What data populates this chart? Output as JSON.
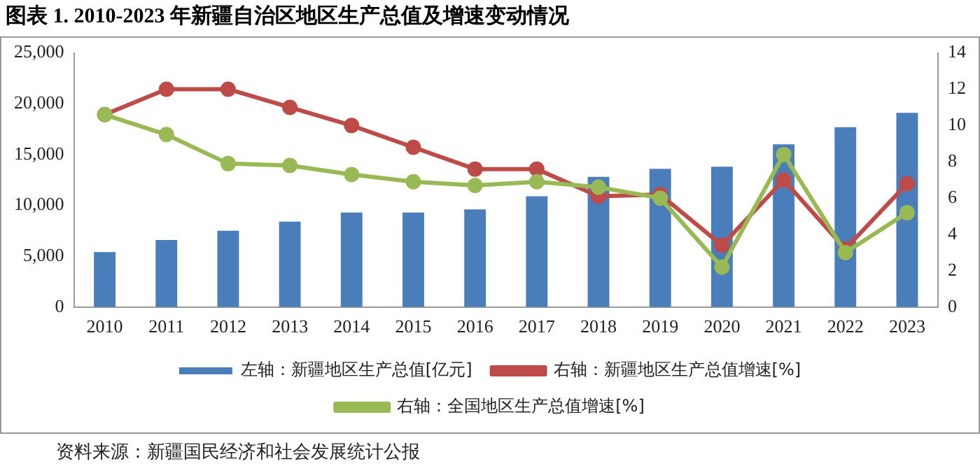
{
  "chart_data": {
    "type": "bar",
    "title": "图表 1. 2010-2023 年新疆自治区地区生产总值及增速变动情况",
    "categories": [
      "2010",
      "2011",
      "2012",
      "2013",
      "2014",
      "2015",
      "2016",
      "2017",
      "2018",
      "2019",
      "2020",
      "2021",
      "2022",
      "2023"
    ],
    "series": [
      {
        "name": "左轴：新疆地区生产总值[亿元]",
        "color": "#4a7ebb",
        "values": [
          5400,
          6600,
          7500,
          8400,
          9300,
          9300,
          9600,
          10900,
          12800,
          13600,
          13800,
          16000,
          17700,
          19100
        ]
      },
      {
        "name": "右轴：新疆地区生产总值增速[%]",
        "type": "line",
        "axis": "y2",
        "color": "#be4b48",
        "values": [
          10.6,
          12.0,
          12.0,
          11.0,
          10.0,
          8.8,
          7.6,
          7.6,
          6.1,
          6.2,
          3.4,
          7.0,
          3.2,
          6.8
        ]
      },
      {
        "name": "右轴：全国地区生产总值增速[%]",
        "type": "line",
        "axis": "y2",
        "color": "#98b954",
        "values": [
          10.6,
          9.5,
          7.9,
          7.8,
          7.3,
          6.9,
          6.7,
          6.9,
          6.6,
          6.0,
          2.2,
          8.4,
          3.0,
          5.2
        ]
      }
    ],
    "ylim": [
      0,
      25000
    ],
    "yticks": [
      {
        "value": 0,
        "label": "0"
      },
      {
        "value": 5000,
        "label": "5,000"
      },
      {
        "value": 10000,
        "label": "10,000"
      },
      {
        "value": 15000,
        "label": "15,000"
      },
      {
        "value": 20000,
        "label": "20,000"
      },
      {
        "value": 25000,
        "label": "25,000"
      }
    ],
    "y2lim": [
      0,
      14
    ],
    "y2ticks": [
      0,
      2,
      4,
      6,
      8,
      10,
      12,
      14
    ],
    "grid": false,
    "legend": "bottom",
    "marker": "circle",
    "line_style": "solid",
    "annotations": [
      "资料来源：新疆国民经济和社会发展统计公报"
    ]
  }
}
